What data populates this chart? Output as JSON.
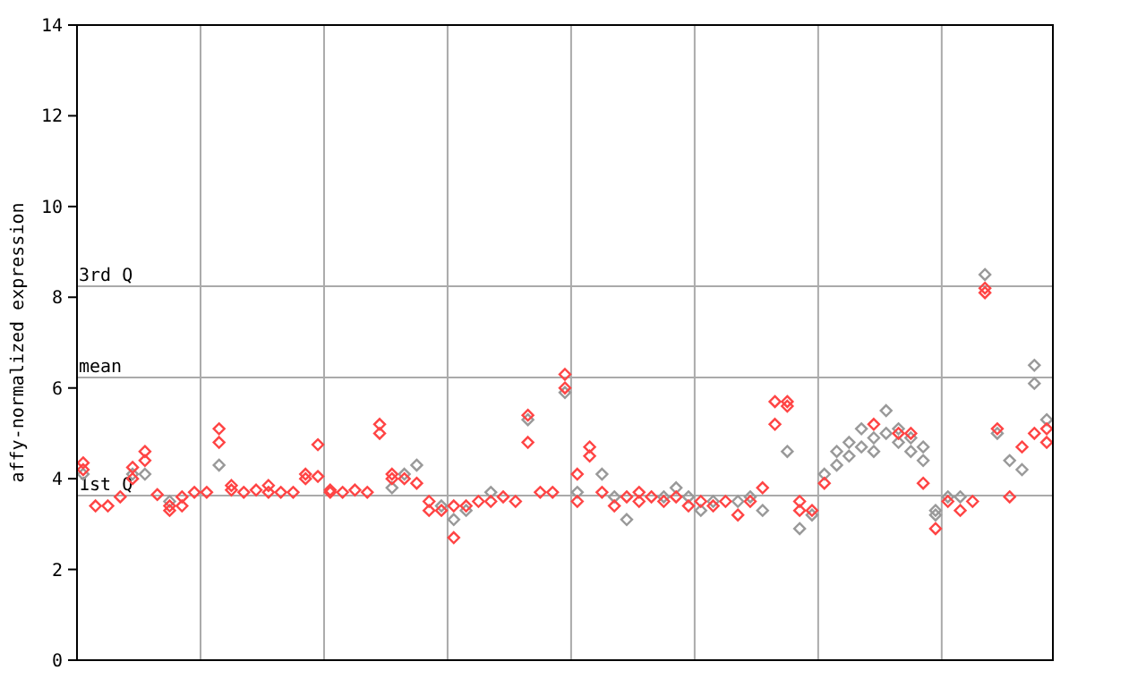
{
  "chart_data": {
    "type": "scatter",
    "ylabel": "affy-normalized expression",
    "categories": [
      null,
      null,
      null,
      null,
      null,
      null,
      null,
      null,
      null,
      null,
      null,
      null,
      null,
      null,
      null,
      null,
      null,
      null,
      null,
      null,
      null,
      null,
      null,
      null,
      null,
      null,
      null,
      null,
      null,
      null,
      null,
      null,
      null,
      null,
      null,
      null,
      null,
      null,
      null,
      null,
      null,
      null,
      null,
      null,
      null,
      null,
      null,
      null,
      null,
      null,
      null,
      null,
      null,
      null,
      null,
      null,
      null,
      null,
      null,
      null,
      null,
      null,
      null,
      null,
      null,
      null,
      null,
      null,
      null,
      null,
      null,
      null,
      null,
      null,
      null,
      null,
      null,
      null,
      null
    ],
    "series": [
      {
        "color": "#999999",
        "values": [
          4.1,
          null,
          null,
          null,
          4.1,
          4.1,
          null,
          3.5,
          null,
          null,
          null,
          4.3,
          null,
          null,
          null,
          null,
          null,
          null,
          null,
          null,
          null,
          null,
          null,
          null,
          null,
          3.8,
          4.1,
          4.3,
          null,
          3.4,
          3.1,
          3.3,
          null,
          3.7,
          null,
          null,
          5.3,
          null,
          null,
          5.9,
          3.7,
          null,
          4.1,
          3.6,
          3.1,
          null,
          null,
          3.6,
          3.8,
          3.6,
          3.3,
          3.5,
          null,
          3.5,
          3.6,
          3.3,
          null,
          4.6,
          2.9,
          3.2,
          4.1,
          4.3,
          4.5,
          4.7,
          4.9,
          5.0,
          4.8,
          4.6,
          4.4,
          3.2,
          3.6,
          3.6,
          null,
          8.5,
          5.0,
          4.4,
          4.2,
          6.1,
          5.3
        ]
      },
      {
        "color": "#999999",
        "values": [
          null,
          null,
          null,
          null,
          null,
          null,
          null,
          null,
          null,
          null,
          null,
          null,
          null,
          null,
          null,
          null,
          null,
          null,
          null,
          null,
          null,
          null,
          null,
          null,
          null,
          null,
          null,
          null,
          null,
          null,
          null,
          null,
          null,
          null,
          null,
          null,
          null,
          null,
          null,
          null,
          null,
          null,
          null,
          null,
          null,
          null,
          null,
          null,
          null,
          null,
          null,
          null,
          null,
          null,
          null,
          null,
          null,
          null,
          null,
          null,
          null,
          4.6,
          4.8,
          5.1,
          4.6,
          5.5,
          5.1,
          4.9,
          4.7,
          3.3,
          null,
          null,
          null,
          null,
          null,
          null,
          null,
          6.5,
          null
        ]
      },
      {
        "color": "#ff4444",
        "values": [
          4.2,
          3.4,
          3.4,
          3.6,
          4.0,
          4.4,
          3.65,
          3.4,
          3.6,
          3.7,
          3.7,
          4.8,
          3.75,
          3.7,
          3.75,
          3.7,
          3.7,
          3.7,
          4.0,
          4.75,
          3.7,
          3.7,
          3.75,
          3.7,
          5.2,
          4.0,
          4.0,
          3.9,
          3.3,
          3.3,
          2.7,
          3.4,
          3.5,
          3.5,
          3.6,
          3.5,
          4.8,
          3.7,
          3.7,
          6.0,
          3.5,
          4.5,
          3.7,
          3.4,
          3.6,
          3.5,
          3.6,
          3.5,
          3.6,
          3.4,
          3.5,
          3.4,
          3.5,
          3.2,
          3.5,
          3.8,
          5.2,
          5.6,
          3.3,
          3.3,
          3.9,
          null,
          null,
          null,
          5.2,
          null,
          5.0,
          5.0,
          3.9,
          2.9,
          3.5,
          3.3,
          3.5,
          8.1,
          5.1,
          3.6,
          4.7,
          5.0,
          4.8
        ]
      },
      {
        "color": "#ff4444",
        "values": [
          4.35,
          null,
          null,
          null,
          4.25,
          4.6,
          null,
          3.3,
          3.4,
          null,
          null,
          5.1,
          3.85,
          null,
          null,
          3.85,
          null,
          null,
          4.1,
          4.05,
          3.75,
          null,
          null,
          null,
          5.0,
          4.1,
          null,
          null,
          3.5,
          null,
          3.4,
          null,
          null,
          null,
          null,
          null,
          5.4,
          null,
          null,
          6.3,
          4.1,
          4.7,
          null,
          null,
          null,
          3.7,
          null,
          null,
          null,
          null,
          null,
          null,
          null,
          null,
          null,
          null,
          5.7,
          5.7,
          3.5,
          null,
          null,
          null,
          null,
          null,
          null,
          null,
          null,
          null,
          null,
          null,
          null,
          null,
          null,
          8.2,
          null,
          null,
          null,
          null,
          5.1
        ]
      }
    ],
    "ylim": [
      0,
      14
    ],
    "yticks": [
      0,
      2,
      4,
      6,
      8,
      10,
      12,
      14
    ],
    "grid": "x",
    "marker": "diamond",
    "ref_lines": [
      {
        "axis": "y",
        "value": 3.63,
        "label": "1st Q",
        "color": "#aaaaaa"
      },
      {
        "axis": "y",
        "value": 6.23,
        "label": "mean",
        "color": "#aaaaaa"
      },
      {
        "axis": "y",
        "value": 8.24,
        "label": "3rd Q",
        "color": "#aaaaaa"
      }
    ]
  }
}
